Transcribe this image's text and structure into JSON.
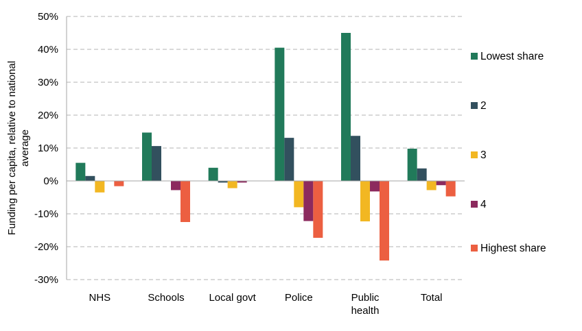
{
  "chart_data": {
    "type": "bar",
    "title": "",
    "xlabel": "",
    "ylabel": "Funding per capita, relative to national average",
    "ylim": [
      -30,
      50
    ],
    "ytick_step": 10,
    "ytick_format": "{v}%",
    "grid": true,
    "legend_position": "right",
    "categories": [
      [
        "NHS"
      ],
      [
        "Schools"
      ],
      [
        "Local govt"
      ],
      [
        "Police"
      ],
      [
        "Public",
        "health"
      ],
      [
        "Total"
      ]
    ],
    "series": [
      {
        "name": "Lowest share",
        "color": "#217a5a",
        "values": [
          5.5,
          14.7,
          4.0,
          40.5,
          45.0,
          9.8
        ]
      },
      {
        "name": "2",
        "color": "#32505e",
        "values": [
          1.5,
          10.6,
          -0.5,
          13.1,
          13.7,
          3.8
        ]
      },
      {
        "name": "3",
        "color": "#f2b722",
        "values": [
          -3.5,
          0,
          -2.2,
          -8.0,
          -12.3,
          -2.8
        ]
      },
      {
        "name": "4",
        "color": "#8c2a5e",
        "values": [
          0,
          -2.8,
          -0.5,
          -12.2,
          -3.2,
          -1.3
        ]
      },
      {
        "name": "Highest share",
        "color": "#ec5f41",
        "values": [
          -1.6,
          -12.5,
          0,
          -17.3,
          -24.2,
          -4.7
        ]
      }
    ]
  }
}
